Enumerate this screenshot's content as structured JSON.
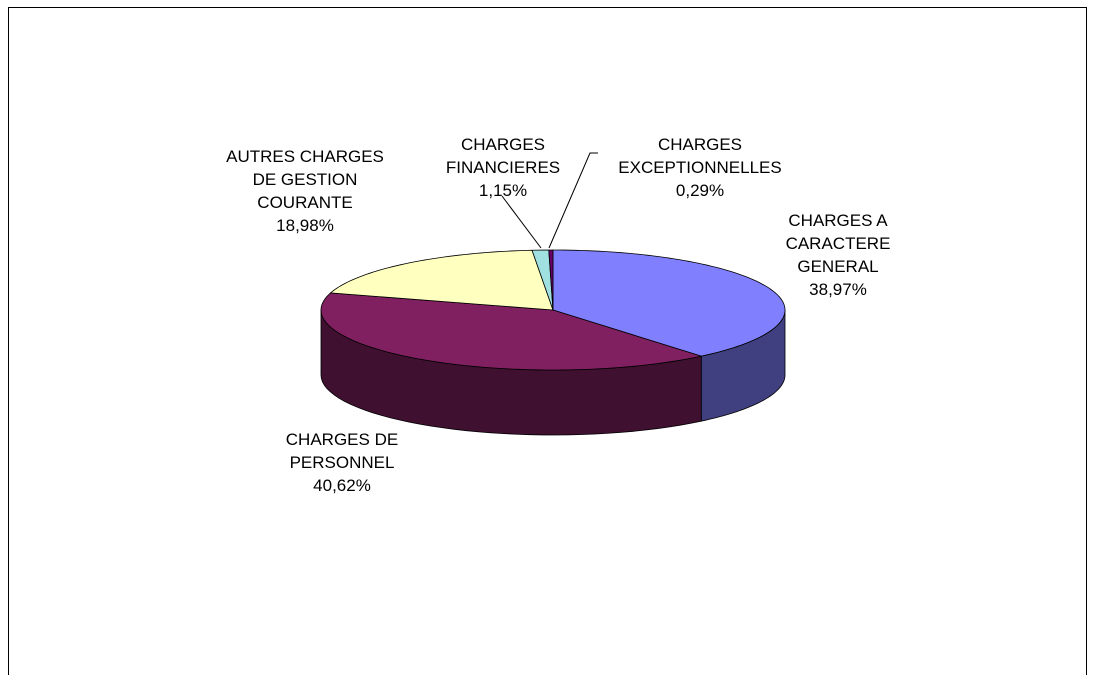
{
  "chart_data": {
    "type": "pie",
    "categories": [
      "CHARGES A CARACTERE GENERAL",
      "CHARGES DE PERSONNEL",
      "AUTRES CHARGES DE GESTION COURANTE",
      "CHARGES FINANCIERES",
      "CHARGES EXCEPTIONNELLES"
    ],
    "values": [
      38.97,
      40.62,
      18.98,
      1.15,
      0.29
    ],
    "value_labels": [
      "38,97%",
      "40,62%",
      "18,98%",
      "1,15%",
      "0,29%"
    ],
    "colors": [
      "#8080ff",
      "#802060",
      "#ffffc0",
      "#a0e0e0",
      "#660066"
    ]
  }
}
